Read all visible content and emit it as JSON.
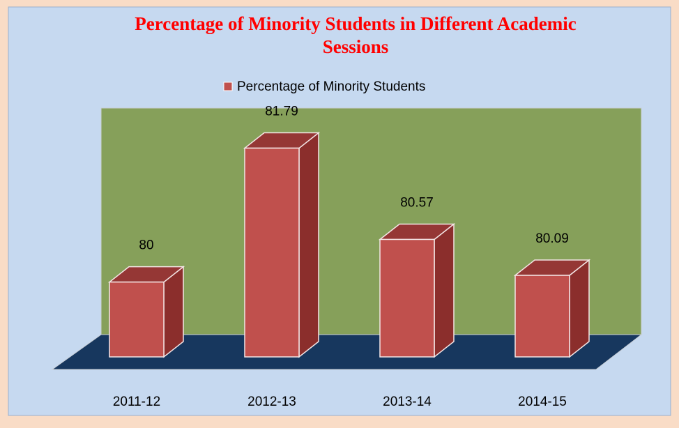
{
  "chart_data": {
    "type": "bar3d",
    "title": "Percentage of Minority Students in Different Academic Sessions",
    "categories": [
      "2011-12",
      "2012-13",
      "2013-14",
      "2014-15"
    ],
    "series": [
      {
        "name": "Percentage of Minority Students",
        "color": "#c0504d",
        "values": [
          80,
          81.79,
          80.57,
          80.09
        ]
      }
    ],
    "ylim": [
      79,
      82
    ]
  }
}
